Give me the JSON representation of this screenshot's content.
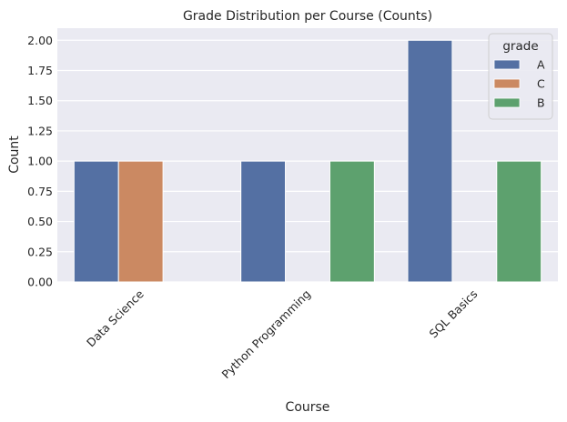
{
  "chart_data": {
    "type": "bar",
    "title": "Grade Distribution per Course (Counts)",
    "xlabel": "Course",
    "ylabel": "Count",
    "categories": [
      "Data Science",
      "Python Programming",
      "SQL Basics"
    ],
    "ylim": [
      0,
      2.1
    ],
    "yticks": [
      0,
      0.25,
      0.5,
      0.75,
      1.0,
      1.25,
      1.5,
      1.75,
      2.0
    ],
    "ytick_labels": [
      "0.00",
      "0.25",
      "0.50",
      "0.75",
      "1.00",
      "1.25",
      "1.50",
      "1.75",
      "2.00"
    ],
    "grid": true,
    "legend": {
      "title": "grade",
      "position": "top-right"
    },
    "series": [
      {
        "name": "A",
        "color": "#5470a3",
        "values": [
          1,
          1,
          2
        ]
      },
      {
        "name": "C",
        "color": "#cb8962",
        "values": [
          1,
          0,
          0
        ]
      },
      {
        "name": "B",
        "color": "#5da16e",
        "values": [
          0,
          1,
          1
        ]
      }
    ]
  }
}
